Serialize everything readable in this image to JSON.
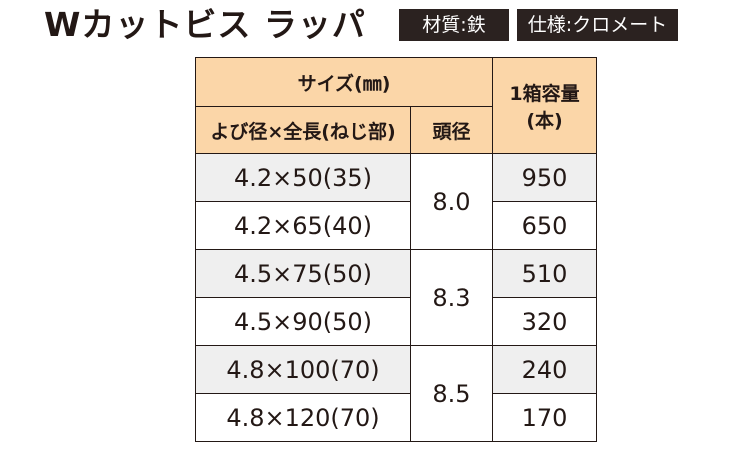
{
  "title": "Wカットビス ラッパ",
  "badges": {
    "material": "材質:鉄",
    "finish": "仕様:クロメート"
  },
  "table": {
    "headers": {
      "size": "サイズ(㎜)",
      "diameter_length": "よび径×全長(ねじ部)",
      "head_diameter": "頭径",
      "quantity": "1箱容量\n(本)",
      "quantity_line1": "1箱容量",
      "quantity_line2": "(本)"
    },
    "rows": [
      {
        "size": "4.2×50(35)",
        "head": "8.0",
        "qty": "950"
      },
      {
        "size": "4.2×65(40)",
        "head": "8.0",
        "qty": "650"
      },
      {
        "size": "4.5×75(50)",
        "head": "8.3",
        "qty": "510"
      },
      {
        "size": "4.5×90(50)",
        "head": "8.3",
        "qty": "320"
      },
      {
        "size": "4.8×100(70)",
        "head": "8.5",
        "qty": "240"
      },
      {
        "size": "4.8×120(70)",
        "head": "8.5",
        "qty": "170"
      }
    ]
  },
  "colors": {
    "header_fill": "#fbd6a8",
    "row_shade": "#efefef",
    "badge_fill": "#2b2220",
    "text": "#231815"
  }
}
